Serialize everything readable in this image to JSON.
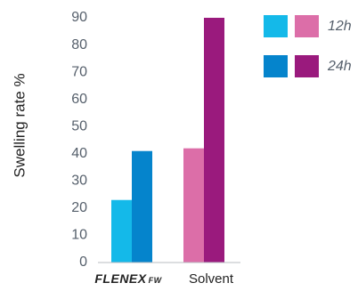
{
  "chart_data": {
    "type": "bar",
    "title": "",
    "ylabel": "Swelling rate %",
    "xlabel": "",
    "ylim": [
      0,
      90
    ],
    "yticks": [
      0,
      10,
      20,
      30,
      40,
      50,
      60,
      70,
      80,
      90
    ],
    "categories": [
      {
        "id": "flenex",
        "brand_main": "FLENEX",
        "brand_sub": "FW"
      },
      {
        "id": "solvent",
        "label": "Solvent"
      }
    ],
    "series": [
      {
        "name": "12h",
        "values": [
          23,
          42
        ],
        "colors": [
          "#14b9e9",
          "#dc6ea8"
        ]
      },
      {
        "name": "24h",
        "values": [
          41,
          90
        ],
        "colors": [
          "#0584cc",
          "#9a1a7d"
        ]
      }
    ],
    "grid": false,
    "legend_position": "top-right"
  }
}
